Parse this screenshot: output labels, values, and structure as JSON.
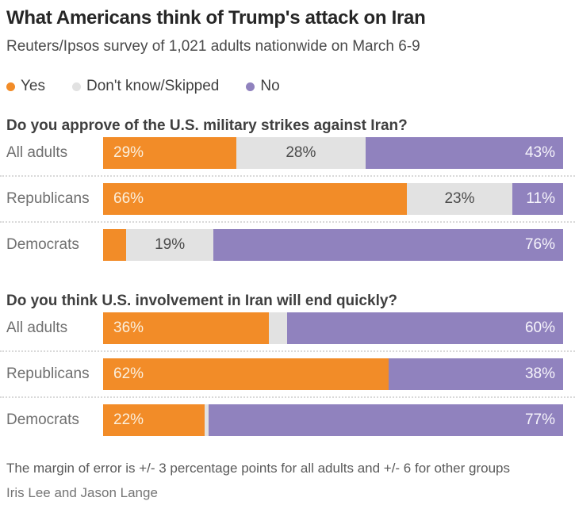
{
  "header": {
    "title": "What Americans think of Trump's attack on Iran",
    "subtitle": "Reuters/Ipsos survey of 1,021 adults nationwide on March 6-9"
  },
  "legend": {
    "items": [
      {
        "label": "Yes",
        "color": "#F28C28"
      },
      {
        "label": "Don't know/Skipped",
        "color": "#E2E2E2"
      },
      {
        "label": "No",
        "color": "#9082BE"
      }
    ]
  },
  "chart_data": [
    {
      "type": "bar",
      "variant": "stacked-horizontal",
      "title": "Do you approve of the U.S. military strikes against Iran?",
      "categories": [
        "All adults",
        "Republicans",
        "Democrats"
      ],
      "series": [
        {
          "name": "Yes",
          "values": [
            29,
            66,
            5
          ]
        },
        {
          "name": "Don't know/Skipped",
          "values": [
            28,
            23,
            19
          ]
        },
        {
          "name": "No",
          "values": [
            43,
            11,
            76
          ]
        }
      ],
      "unit": "%",
      "xlim": [
        0,
        100
      ],
      "layout": "segment labels shown inside bars only when value >= 10"
    },
    {
      "type": "bar",
      "variant": "stacked-horizontal",
      "title": "Do you think U.S. involvement in Iran will end quickly?",
      "categories": [
        "All adults",
        "Republicans",
        "Democrats"
      ],
      "series": [
        {
          "name": "Yes",
          "values": [
            36,
            62,
            22
          ]
        },
        {
          "name": "Don't know/Skipped",
          "values": [
            4,
            0,
            1
          ]
        },
        {
          "name": "No",
          "values": [
            60,
            38,
            77
          ]
        }
      ],
      "unit": "%",
      "xlim": [
        0,
        100
      ],
      "layout": "segment labels shown inside bars only when value >= 10"
    }
  ],
  "footer": {
    "note": "The margin of error is +/- 3 percentage points for all adults and +/- 6 for other groups",
    "byline": "Iris Lee and Jason Lange"
  }
}
